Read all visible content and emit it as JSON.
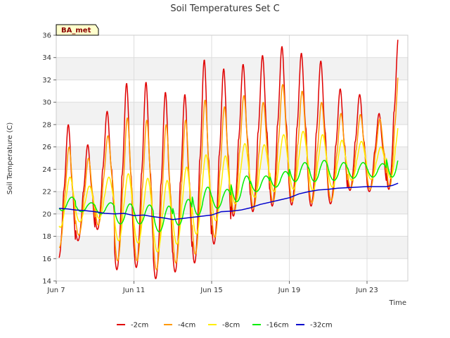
{
  "chart_data": {
    "type": "line",
    "title": "Soil Temperatures Set C",
    "xlabel": "Time",
    "ylabel": "Soil Temperature (C)",
    "badge": "BA_met",
    "ylim": [
      14,
      36
    ],
    "xlim_days": [
      7,
      25.1
    ],
    "yticks": [
      14,
      16,
      18,
      20,
      22,
      24,
      26,
      28,
      30,
      32,
      34,
      36
    ],
    "xticks": [
      {
        "label": "Jun 7",
        "day": 7
      },
      {
        "label": "Jun 11",
        "day": 11
      },
      {
        "label": "Jun 15",
        "day": 15
      },
      {
        "label": "Jun 19",
        "day": 19
      },
      {
        "label": "Jun 23",
        "day": 23
      }
    ],
    "x_start_day": 7.15,
    "x_end_day": 24.6,
    "grid": true,
    "legend_position": "bottom",
    "series": [
      {
        "name": "-2cm",
        "color": "#e00000",
        "mins": [
          16,
          17.6,
          18.6,
          15,
          15.2,
          14.2,
          14.8,
          15.6,
          17.3,
          19.8,
          20.2,
          20.7,
          20.8,
          20.7,
          20.9,
          22.1,
          22.0,
          22.2
        ],
        "maxs": [
          28,
          26.2,
          29.2,
          31.7,
          31.8,
          30.9,
          30.7,
          33.8,
          33.0,
          33.4,
          34.2,
          35.0,
          34.4,
          33.7,
          31.2,
          30.7,
          29.0,
          35.9
        ]
      },
      {
        "name": "-4cm",
        "color": "#ff9900",
        "mins": [
          17.0,
          18.1,
          19.0,
          15.8,
          15.8,
          15.0,
          15.6,
          16.4,
          17.9,
          20.1,
          20.5,
          21.0,
          21.1,
          21.0,
          21.2,
          22.3,
          22.2,
          22.4
        ],
        "maxs": [
          26.0,
          25.0,
          27.0,
          28.6,
          28.4,
          28.0,
          28.4,
          30.2,
          29.6,
          30.6,
          30.0,
          31.6,
          31.0,
          30.0,
          29.0,
          28.9,
          28.5,
          33.2
        ]
      },
      {
        "name": "-8cm",
        "color": "#ffee00",
        "mins": [
          18.8,
          19.3,
          19.6,
          17.6,
          17.4,
          16.6,
          17.3,
          18.2,
          19.4,
          20.9,
          21.5,
          22.0,
          22.2,
          22.1,
          22.4,
          23.0,
          23.1,
          23.2
        ],
        "maxs": [
          23.3,
          22.5,
          23.3,
          23.6,
          23.2,
          23.0,
          24.2,
          25.3,
          25.2,
          26.3,
          26.2,
          27.1,
          27.4,
          27.1,
          26.6,
          26.5,
          26.0,
          28.7
        ]
      },
      {
        "name": "-16cm",
        "color": "#00ee00",
        "mins": [
          20.3,
          20.2,
          20.0,
          19.1,
          19.1,
          18.4,
          19.0,
          19.9,
          20.5,
          21.1,
          22.0,
          22.4,
          22.9,
          22.9,
          23.0,
          23.2,
          23.3,
          23.3
        ],
        "maxs": [
          21.5,
          21.0,
          21.0,
          20.9,
          20.8,
          20.7,
          21.3,
          22.4,
          22.2,
          23.4,
          23.4,
          23.8,
          24.6,
          24.8,
          24.6,
          24.6,
          24.5,
          25.7
        ]
      },
      {
        "name": "-32cm",
        "color": "#0000cc",
        "points": [
          [
            7.15,
            20.5
          ],
          [
            7.6,
            20.45
          ],
          [
            8.0,
            20.35
          ],
          [
            8.5,
            20.3
          ],
          [
            9.0,
            20.2
          ],
          [
            9.5,
            20.05
          ],
          [
            10.0,
            20.0
          ],
          [
            10.5,
            20.05
          ],
          [
            11.0,
            19.85
          ],
          [
            11.5,
            19.9
          ],
          [
            12.0,
            19.75
          ],
          [
            12.5,
            19.65
          ],
          [
            13.0,
            19.5
          ],
          [
            13.5,
            19.6
          ],
          [
            14.0,
            19.7
          ],
          [
            14.5,
            19.8
          ],
          [
            15.0,
            19.9
          ],
          [
            15.5,
            20.2
          ],
          [
            16.0,
            20.25
          ],
          [
            16.5,
            20.35
          ],
          [
            17.0,
            20.55
          ],
          [
            17.5,
            20.85
          ],
          [
            18.0,
            21.05
          ],
          [
            18.5,
            21.25
          ],
          [
            19.0,
            21.45
          ],
          [
            19.5,
            21.8
          ],
          [
            20.0,
            22.0
          ],
          [
            20.5,
            22.15
          ],
          [
            21.0,
            22.2
          ],
          [
            21.5,
            22.3
          ],
          [
            22.0,
            22.35
          ],
          [
            22.5,
            22.4
          ],
          [
            23.0,
            22.45
          ],
          [
            23.5,
            22.45
          ],
          [
            24.0,
            22.45
          ],
          [
            24.3,
            22.55
          ],
          [
            24.6,
            22.75
          ]
        ]
      }
    ]
  }
}
